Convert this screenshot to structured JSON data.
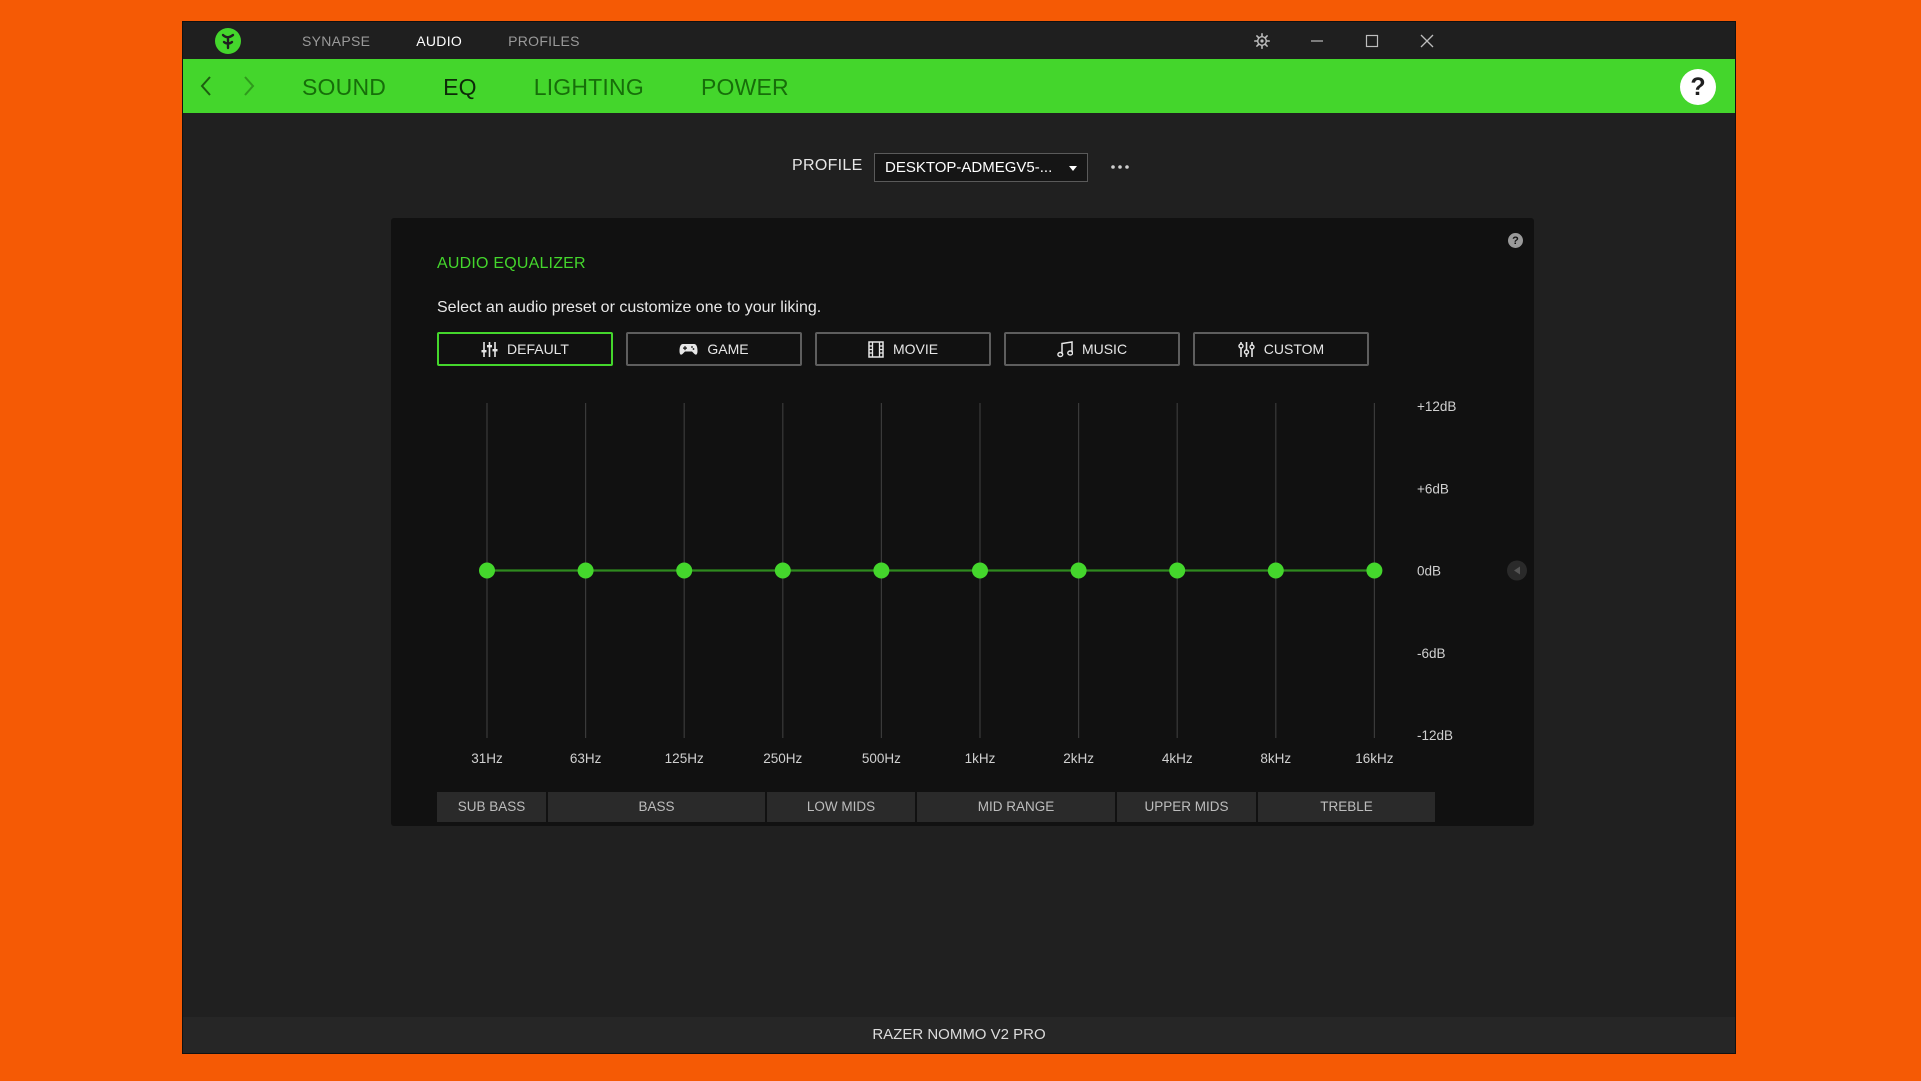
{
  "topnav": {
    "items": [
      "SYNAPSE",
      "AUDIO",
      "PROFILES"
    ],
    "active": "AUDIO"
  },
  "subnav": {
    "items": [
      "SOUND",
      "EQ",
      "LIGHTING",
      "POWER"
    ],
    "active": "EQ"
  },
  "profile": {
    "label": "PROFILE",
    "selected": "DESKTOP-ADMEGV5-..."
  },
  "equalizer": {
    "title": "AUDIO EQUALIZER",
    "subtitle": "Select an audio preset or customize one to your liking.",
    "presets": [
      {
        "label": "DEFAULT",
        "icon": "sliders-icon",
        "active": true
      },
      {
        "label": "GAME",
        "icon": "gamepad-icon",
        "active": false
      },
      {
        "label": "MOVIE",
        "icon": "film-icon",
        "active": false
      },
      {
        "label": "MUSIC",
        "icon": "music-note-icon",
        "active": false
      },
      {
        "label": "CUSTOM",
        "icon": "custom-sliders-icon",
        "active": false
      }
    ],
    "frequencies": [
      "31Hz",
      "63Hz",
      "125Hz",
      "250Hz",
      "500Hz",
      "1kHz",
      "2kHz",
      "4kHz",
      "8kHz",
      "16kHz"
    ],
    "gains_db": [
      0,
      0,
      0,
      0,
      0,
      0,
      0,
      0,
      0,
      0
    ],
    "db_labels": [
      "+12dB",
      "+6dB",
      "0dB",
      "-6dB",
      "-12dB"
    ],
    "db_range": [
      -12,
      12
    ],
    "bands": [
      "SUB BASS",
      "BASS",
      "LOW MIDS",
      "MID RANGE",
      "UPPER MIDS",
      "TREBLE"
    ]
  },
  "device": {
    "name": "RAZER NOMMO V2 PRO"
  },
  "colors": {
    "accent": "#44d62c",
    "background": "#202020",
    "panel": "#111111",
    "desktop": "#f55a05"
  }
}
